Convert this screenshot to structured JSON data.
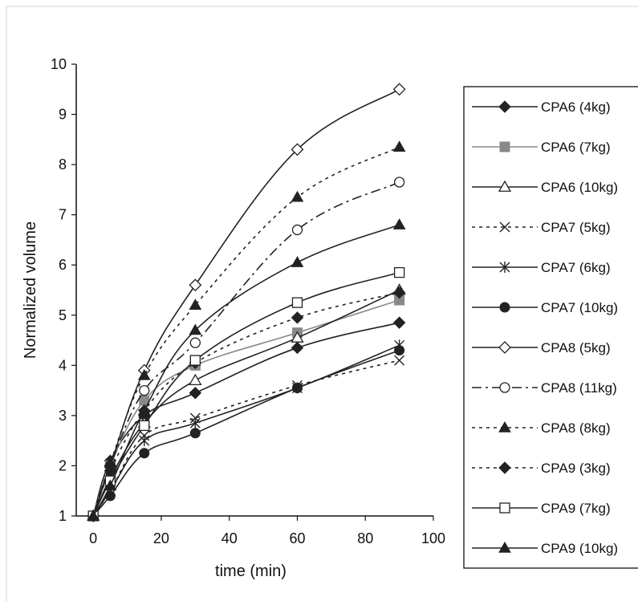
{
  "chart_data": {
    "type": "line",
    "title": "",
    "xlabel": "time (min)",
    "ylabel": "Normalized volume",
    "xlim": [
      -5,
      100
    ],
    "ylim": [
      1,
      10
    ],
    "xticks": [
      0,
      20,
      40,
      60,
      80,
      100
    ],
    "yticks": [
      1,
      2,
      3,
      4,
      5,
      6,
      7,
      8,
      9,
      10
    ],
    "grid": false,
    "legend_position": "right",
    "x": [
      0,
      5,
      15,
      30,
      60,
      90
    ],
    "series": [
      {
        "name": "CPA6 (4kg)",
        "values": [
          1,
          2.1,
          3.0,
          3.45,
          4.35,
          4.85
        ],
        "color": "#222222",
        "marker": "diamond",
        "dash": "solid"
      },
      {
        "name": "CPA6 (7kg)",
        "values": [
          1,
          2.0,
          3.3,
          4.0,
          4.65,
          5.3
        ],
        "color": "#888888",
        "marker": "square-filled",
        "dash": "solid"
      },
      {
        "name": "CPA6 (10kg)",
        "values": [
          1,
          1.75,
          2.85,
          3.7,
          4.55,
          5.5
        ],
        "color": "#222222",
        "marker": "triangle-open",
        "dash": "solid"
      },
      {
        "name": "CPA7 (5kg)",
        "values": [
          1,
          1.5,
          2.6,
          2.95,
          3.6,
          4.1
        ],
        "color": "#222222",
        "marker": "x",
        "dash": "dotted"
      },
      {
        "name": "CPA7 (6kg)",
        "values": [
          1,
          1.5,
          2.5,
          2.85,
          3.55,
          4.4
        ],
        "color": "#222222",
        "marker": "asterisk",
        "dash": "solid"
      },
      {
        "name": "CPA7 (10kg)",
        "values": [
          1,
          1.4,
          2.25,
          2.65,
          3.55,
          4.3
        ],
        "color": "#222222",
        "marker": "circle-filled",
        "dash": "solid"
      },
      {
        "name": "CPA8 (5kg)",
        "values": [
          1,
          2.0,
          3.9,
          5.6,
          8.3,
          9.5
        ],
        "color": "#222222",
        "marker": "diamond-open",
        "dash": "solid"
      },
      {
        "name": "CPA8 (11kg)",
        "values": [
          1,
          2.0,
          3.5,
          4.45,
          6.7,
          7.65
        ],
        "color": "#222222",
        "marker": "circle-open",
        "dash": "dashdot"
      },
      {
        "name": "CPA8 (8kg)",
        "values": [
          1,
          2.05,
          3.8,
          5.2,
          7.35,
          8.35
        ],
        "color": "#222222",
        "marker": "triangle-filled",
        "dash": "dotted"
      },
      {
        "name": "CPA9 (3kg)",
        "values": [
          1,
          1.9,
          3.1,
          4.05,
          4.95,
          5.45
        ],
        "color": "#222222",
        "marker": "diamond",
        "dash": "dotted"
      },
      {
        "name": "CPA9 (7kg)",
        "values": [
          1,
          1.7,
          2.8,
          4.1,
          5.25,
          5.85
        ],
        "color": "#222222",
        "marker": "square-open",
        "dash": "solid"
      },
      {
        "name": "CPA9 (10kg)",
        "values": [
          1,
          1.6,
          3.1,
          4.7,
          6.05,
          6.8
        ],
        "color": "#222222",
        "marker": "triangle-filled",
        "dash": "solid"
      }
    ]
  }
}
